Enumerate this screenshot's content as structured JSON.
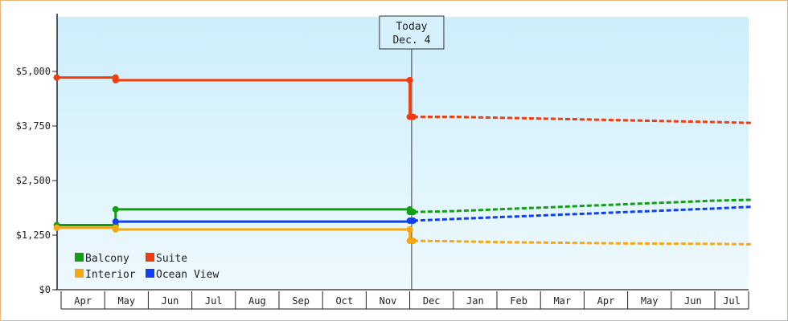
{
  "chart_data": {
    "type": "line",
    "title": "",
    "xlabel": "",
    "ylabel": "",
    "ylim": [
      0,
      6250
    ],
    "y_ticks": [
      0,
      1250,
      2500,
      3750,
      5000
    ],
    "y_tick_labels": [
      "$0",
      "$1,250",
      "$2,500",
      "$3,750",
      "$5,000"
    ],
    "x_months": [
      "Apr",
      "May",
      "Jun",
      "Jul",
      "Aug",
      "Sep",
      "Oct",
      "Nov",
      "Dec",
      "Jan",
      "Feb",
      "Mar",
      "Apr",
      "May",
      "Jun",
      "Jul"
    ],
    "x_range": [
      0,
      15.85
    ],
    "today": {
      "label_line1": "Today",
      "label_line2": "Dec. 4",
      "x": 8.08
    },
    "grid": false,
    "legend_position": "bottom-left",
    "series": [
      {
        "name": "Suite",
        "color": "#f03c0f",
        "historical": [
          [
            -0.1,
            4860
          ],
          [
            1.25,
            4860
          ],
          [
            1.25,
            4800
          ],
          [
            8.0,
            4800
          ],
          [
            8.0,
            3960
          ],
          [
            8.08,
            3960
          ]
        ],
        "markers": [
          [
            -0.1,
            4860
          ],
          [
            1.25,
            4860
          ],
          [
            1.25,
            4800
          ],
          [
            8.0,
            4800
          ],
          [
            8.0,
            3960
          ],
          [
            8.08,
            3960
          ]
        ],
        "projected": [
          [
            8.08,
            3960
          ],
          [
            9.0,
            3960
          ],
          [
            10.0,
            3940
          ],
          [
            11.0,
            3920
          ],
          [
            12.0,
            3900
          ],
          [
            13.0,
            3880
          ],
          [
            14.0,
            3860
          ],
          [
            15.0,
            3840
          ],
          [
            15.85,
            3820
          ]
        ]
      },
      {
        "name": "Balcony",
        "color": "#12a012",
        "historical": [
          [
            -0.1,
            1480
          ],
          [
            1.25,
            1480
          ],
          [
            1.25,
            1840
          ],
          [
            8.0,
            1840
          ],
          [
            8.0,
            1780
          ],
          [
            8.08,
            1780
          ]
        ],
        "markers": [
          [
            -0.1,
            1480
          ],
          [
            1.25,
            1480
          ],
          [
            1.25,
            1840
          ],
          [
            8.0,
            1840
          ],
          [
            8.0,
            1780
          ],
          [
            8.08,
            1780
          ]
        ],
        "projected": [
          [
            8.08,
            1780
          ],
          [
            9.0,
            1800
          ],
          [
            10.0,
            1840
          ],
          [
            11.0,
            1880
          ],
          [
            12.0,
            1920
          ],
          [
            13.0,
            1960
          ],
          [
            14.0,
            2000
          ],
          [
            15.0,
            2040
          ],
          [
            15.85,
            2060
          ]
        ]
      },
      {
        "name": "Ocean View",
        "color": "#1040f0",
        "historical": [
          [
            1.25,
            1560
          ],
          [
            8.0,
            1560
          ],
          [
            8.0,
            1580
          ],
          [
            8.08,
            1580
          ]
        ],
        "markers": [
          [
            1.25,
            1560
          ],
          [
            8.0,
            1580
          ],
          [
            8.08,
            1580
          ]
        ],
        "projected": [
          [
            8.08,
            1580
          ],
          [
            9.0,
            1620
          ],
          [
            10.0,
            1660
          ],
          [
            11.0,
            1700
          ],
          [
            12.0,
            1740
          ],
          [
            13.0,
            1780
          ],
          [
            14.0,
            1820
          ],
          [
            15.0,
            1860
          ],
          [
            15.85,
            1900
          ]
        ]
      },
      {
        "name": "Interior",
        "color": "#f5a814",
        "historical": [
          [
            -0.1,
            1420
          ],
          [
            1.25,
            1420
          ],
          [
            1.25,
            1380
          ],
          [
            8.0,
            1380
          ],
          [
            8.0,
            1120
          ],
          [
            8.08,
            1120
          ]
        ],
        "markers": [
          [
            -0.1,
            1420
          ],
          [
            1.25,
            1420
          ],
          [
            1.25,
            1380
          ],
          [
            8.0,
            1380
          ],
          [
            8.0,
            1120
          ],
          [
            8.08,
            1120
          ]
        ],
        "projected": [
          [
            8.08,
            1120
          ],
          [
            9.0,
            1110
          ],
          [
            10.0,
            1090
          ],
          [
            11.0,
            1080
          ],
          [
            12.0,
            1070
          ],
          [
            13.0,
            1060
          ],
          [
            14.0,
            1055
          ],
          [
            15.0,
            1050
          ],
          [
            15.85,
            1040
          ]
        ]
      }
    ],
    "legend_order": [
      "Balcony",
      "Suite",
      "Interior",
      "Ocean View"
    ]
  },
  "colors": {
    "plot_bg_top": "#cdeefb",
    "plot_bg_bottom": "#eef9fe",
    "frame_border": "#e9b67a",
    "axis": "#222222"
  }
}
